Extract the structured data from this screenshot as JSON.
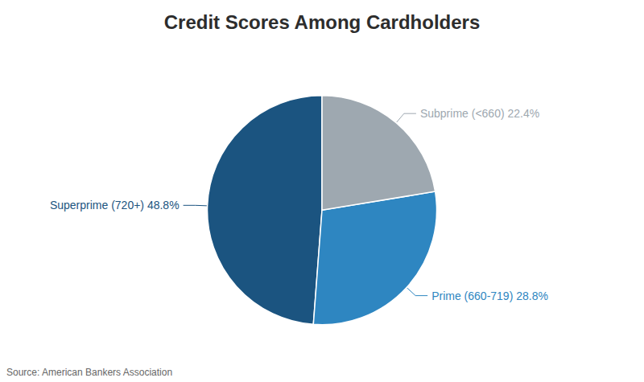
{
  "chart_data": {
    "type": "pie",
    "title": "Credit Scores Among Cardholders",
    "categories": [
      "Superprime (720+) 48.8%",
      "Prime (660-719) 28.8%",
      "Subprime (<660) 22.4%"
    ],
    "values": [
      48.8,
      28.8,
      22.4
    ],
    "colors": [
      "#1b5480",
      "#2e86c1",
      "#9ea8b0"
    ],
    "annotations": [
      "Source: American Bankers Association"
    ]
  }
}
